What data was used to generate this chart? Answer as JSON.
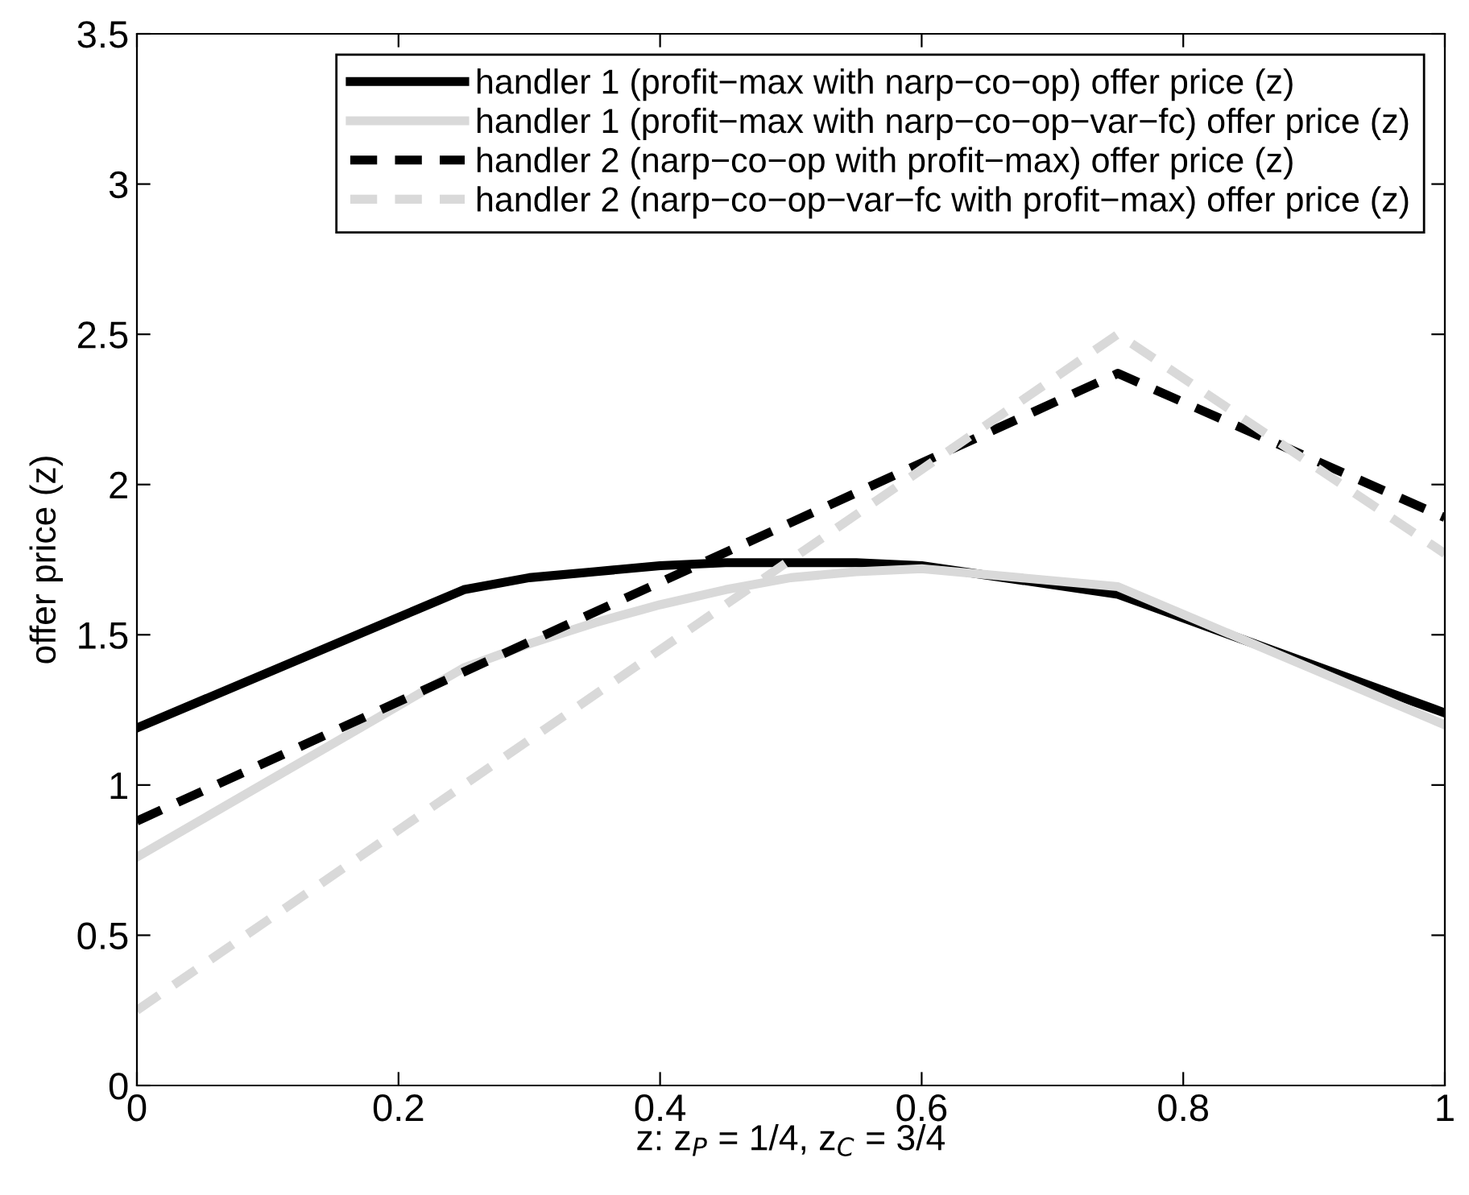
{
  "chart_data": {
    "type": "line",
    "xlabel": "z: z$_{P}$ = 1/4, z$_{C}$ = 3/4",
    "ylabel": "offer price (z)",
    "xlim": [
      0,
      1
    ],
    "xticks": [
      0,
      0.2,
      0.4,
      0.6,
      0.8,
      1
    ],
    "ylim": [
      0,
      3.5
    ],
    "yticks": [
      0,
      0.5,
      1,
      1.5,
      2,
      2.5,
      3,
      3.5
    ],
    "grid": false,
    "legend": "top right",
    "marker": "none",
    "series": [
      {
        "name": "handler 1 (profit−max with narp−co−op) offer price (z)",
        "color": "#000000",
        "line_style": "solid",
        "x": [
          0,
          0.25,
          0.3,
          0.35,
          0.4,
          0.45,
          0.5,
          0.55,
          0.6,
          0.75,
          1
        ],
        "values": [
          1.19,
          1.65,
          1.69,
          1.71,
          1.73,
          1.74,
          1.74,
          1.74,
          1.73,
          1.635,
          1.24
        ]
      },
      {
        "name": "handler 1 (profit−max with narp−co−op−var−fc) offer price (z)",
        "color": "#d9d9d9",
        "line_style": "solid",
        "x": [
          0,
          0.25,
          0.3,
          0.35,
          0.4,
          0.45,
          0.5,
          0.55,
          0.6,
          0.75,
          1
        ],
        "values": [
          0.76,
          1.39,
          1.47,
          1.54,
          1.6,
          1.65,
          1.69,
          1.71,
          1.72,
          1.66,
          1.2
        ]
      },
      {
        "name": "handler 2 (narp−co−op with profit−max) offer price (z)",
        "color": "#000000",
        "line_style": "dashed",
        "x": [
          0,
          0.75,
          1
        ],
        "values": [
          0.88,
          2.37,
          1.89
        ]
      },
      {
        "name": "handler 2 (narp−co−op−var−fc with profit−max) offer price (z)",
        "color": "#d9d9d9",
        "line_style": "dashed",
        "x": [
          0,
          0.75,
          1
        ],
        "values": [
          0.25,
          2.5,
          1.77
        ]
      }
    ]
  }
}
